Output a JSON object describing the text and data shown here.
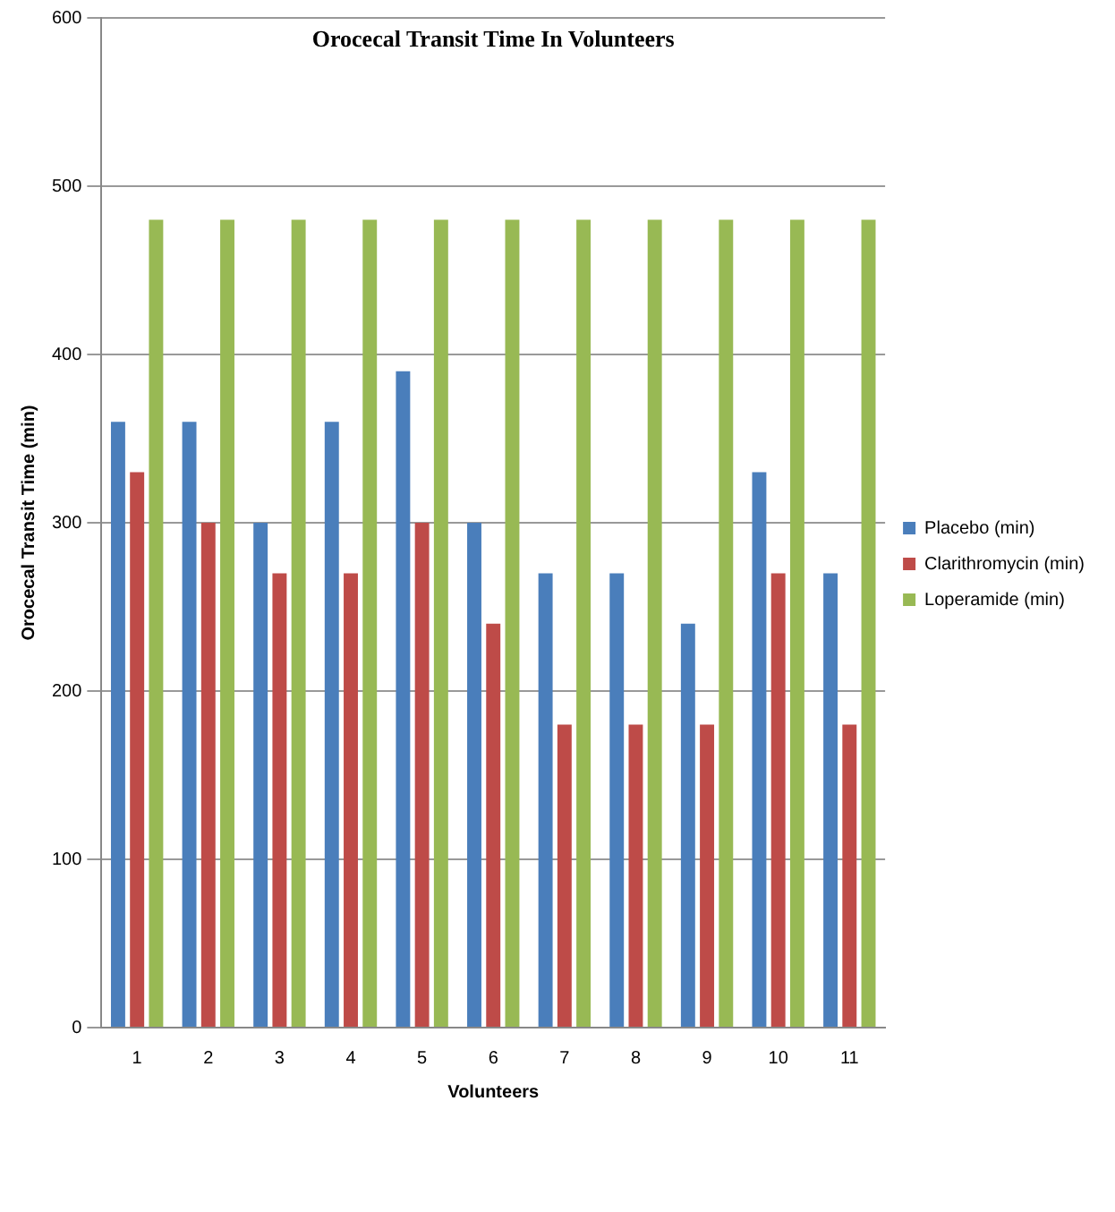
{
  "chart_data": {
    "type": "bar",
    "title": "Orocecal Transit Time In Volunteers",
    "xlabel": "Volunteers",
    "ylabel": "Orocecal Transit Time (min)",
    "categories": [
      "1",
      "2",
      "3",
      "4",
      "5",
      "6",
      "7",
      "8",
      "9",
      "10",
      "11"
    ],
    "series": [
      {
        "name": "Placebo (min)",
        "color": "#4a7ebb",
        "values": [
          360,
          360,
          300,
          360,
          390,
          300,
          270,
          270,
          240,
          330,
          270
        ]
      },
      {
        "name": "Clarithromycin (min)",
        "color": "#be4b48",
        "values": [
          330,
          300,
          270,
          270,
          300,
          240,
          180,
          180,
          180,
          270,
          180
        ]
      },
      {
        "name": "Loperamide (min)",
        "color": "#98b954",
        "values": [
          480,
          480,
          480,
          480,
          480,
          480,
          480,
          480,
          480,
          480,
          480
        ]
      }
    ],
    "ylim": [
      0,
      600
    ],
    "yticks": [
      0,
      100,
      200,
      300,
      400,
      500,
      600
    ],
    "grid": "y",
    "legend": "right"
  }
}
